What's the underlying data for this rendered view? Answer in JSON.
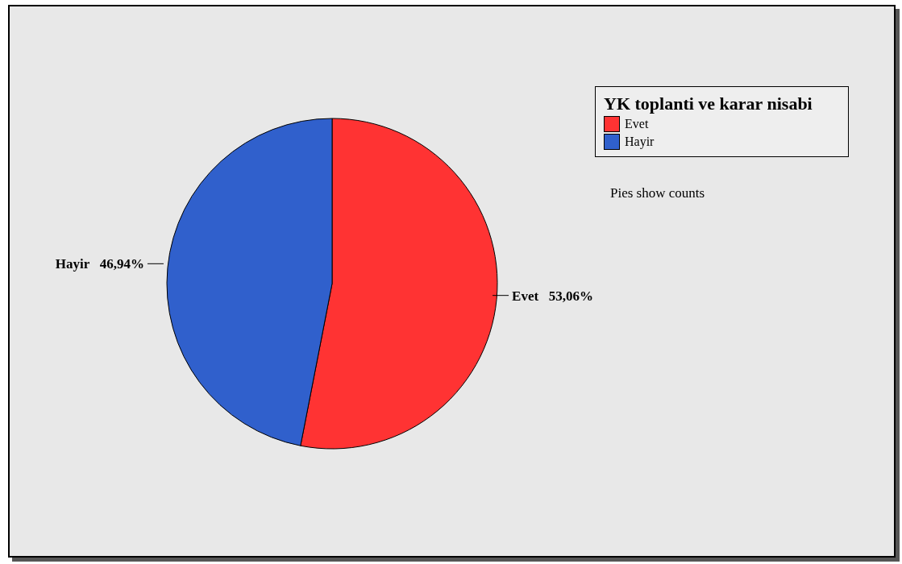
{
  "chart_data": {
    "type": "pie",
    "legend_title": "YK toplanti ve karar nisabi",
    "categories": [
      "Evet",
      "Hayir"
    ],
    "values": [
      53.06,
      46.94
    ],
    "value_labels": [
      "53,06%",
      "46,94%"
    ],
    "colors": [
      "#ff3333",
      "#3060cc"
    ],
    "legend": "top right",
    "annotations": [
      "Pies show counts"
    ]
  }
}
